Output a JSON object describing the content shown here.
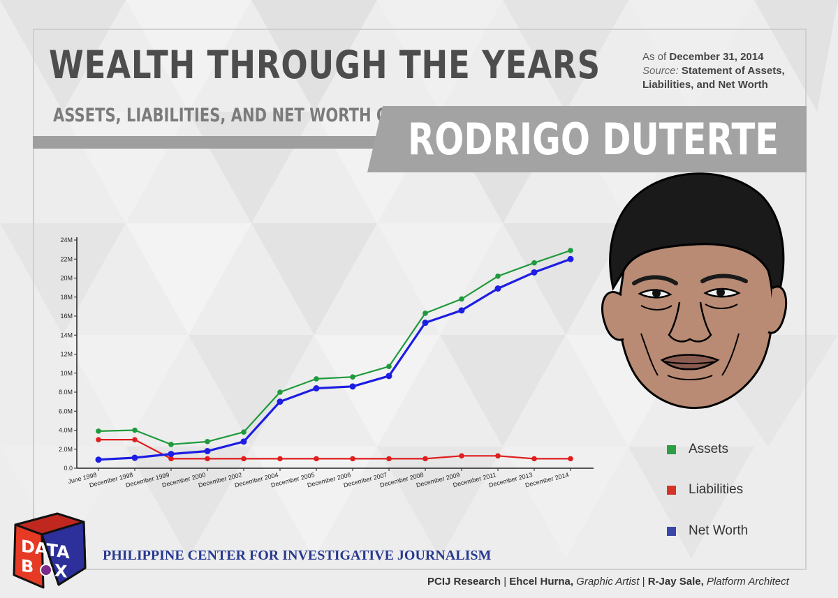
{
  "header": {
    "title": "WEALTH THROUGH THE YEARS",
    "as_of_prefix": "As of",
    "as_of_date": "December 31, 2014",
    "source_prefix": "Source:",
    "source_line1": "Statement of Assets,",
    "source_line2": "Liabilities, and Net Worth",
    "subtitle": "ASSETS, LIABILITIES, AND NET WORTH OF",
    "name": "RODRIGO DUTERTE"
  },
  "colors": {
    "assets": "#1e9a3c",
    "liabilities": "#e01d1d",
    "net_worth": "#1d1de3",
    "legend_assets": "#2e9e45",
    "legend_liabilities": "#d63328",
    "legend_net_worth": "#3b47a8"
  },
  "chart_data": {
    "type": "line",
    "categories": [
      "June 1998",
      "December 1998",
      "December 1999",
      "December 2000",
      "December 2002",
      "December 2004",
      "December 2005",
      "December 2006",
      "December 2007",
      "December 2008",
      "December 2009",
      "December 2011",
      "December 2013",
      "December 2014"
    ],
    "series": [
      {
        "name": "Assets",
        "values": [
          3.9,
          4.0,
          2.5,
          2.8,
          3.8,
          8.0,
          9.4,
          9.6,
          10.7,
          16.3,
          17.8,
          20.2,
          21.6,
          22.9
        ]
      },
      {
        "name": "Liabilities",
        "values": [
          3.0,
          3.0,
          1.0,
          1.0,
          1.0,
          1.0,
          1.0,
          1.0,
          1.0,
          1.0,
          1.3,
          1.3,
          1.0,
          1.0
        ]
      },
      {
        "name": "Net Worth",
        "values": [
          0.9,
          1.1,
          1.5,
          1.8,
          2.8,
          7.0,
          8.4,
          8.6,
          9.7,
          15.3,
          16.6,
          18.9,
          20.6,
          22.0
        ]
      }
    ],
    "unit": "million PHP",
    "ylim": [
      0,
      24
    ],
    "yticks": [
      0,
      2,
      4,
      6,
      8,
      10,
      12,
      14,
      16,
      18,
      20,
      22,
      24
    ],
    "ytick_labels": [
      "0.0",
      "2.0M",
      "4.0M",
      "6.0M",
      "8.0M",
      "10M",
      "12M",
      "14M",
      "16M",
      "18M",
      "20M",
      "22M",
      "24M"
    ],
    "legend_placement": "right",
    "grid": false
  },
  "legend": {
    "items": [
      {
        "label": "Assets",
        "icon": "square"
      },
      {
        "label": "Liabilities",
        "icon": "square"
      },
      {
        "label": "Net Worth",
        "icon": "square"
      }
    ]
  },
  "logo": {
    "text_top": "DATA",
    "text_bottom_b": "B",
    "text_bottom_x": "X",
    "icon": "databox-cube-icon"
  },
  "footer": {
    "org": "PHILIPPINE CENTER FOR INVESTIGATIVE JOURNALISM",
    "research": "PCIJ Research",
    "sep": " | ",
    "artist_name": "Ehcel Hurna,",
    "artist_role": "Graphic Artist",
    "architect_name": "R-Jay Sale,",
    "architect_role": "Platform Architect"
  }
}
